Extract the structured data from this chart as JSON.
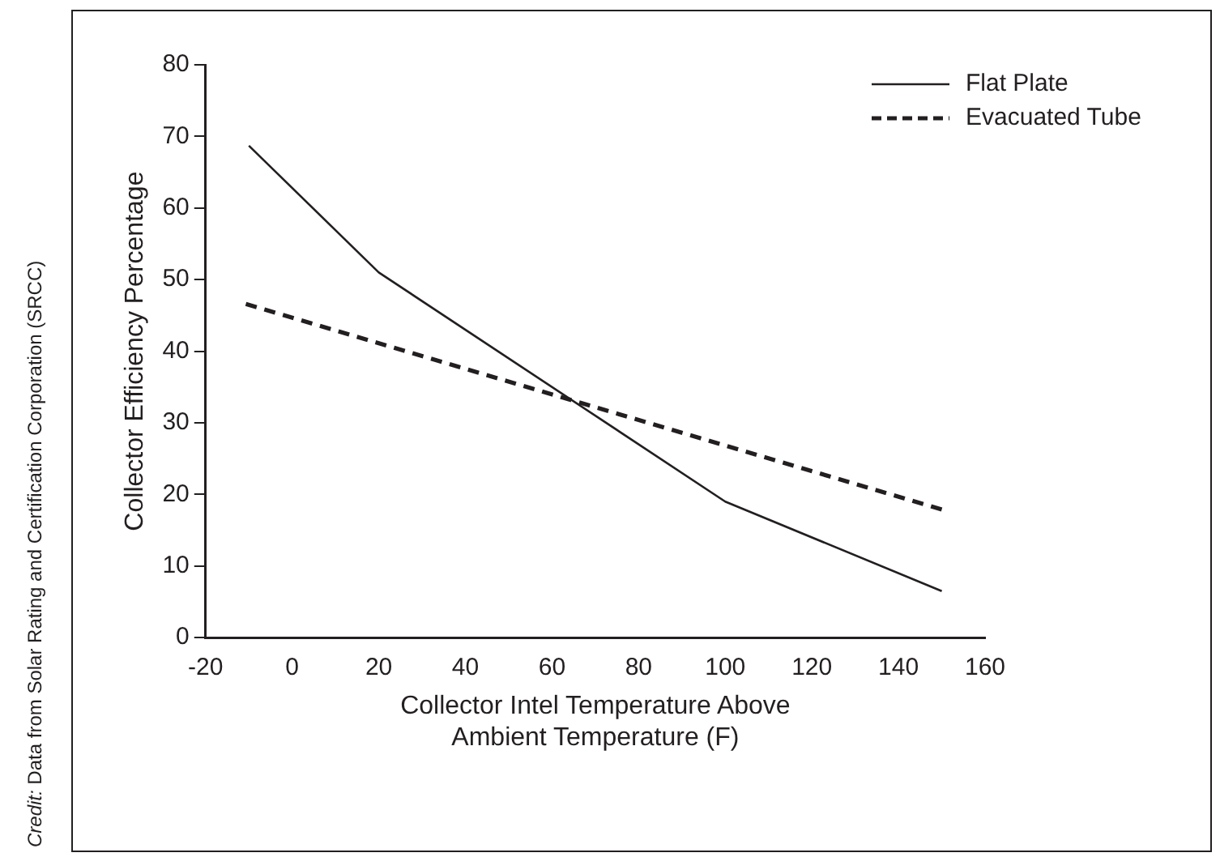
{
  "chart_data": {
    "type": "line",
    "xlabel": "Collector Intel Temperature Above\nAmbient Temperature (F)",
    "ylabel": "Collector Efficiency Percentage",
    "xlim": [
      -20,
      160
    ],
    "xticks": [
      -20,
      0,
      20,
      40,
      60,
      80,
      100,
      120,
      140,
      160
    ],
    "ylim": [
      0,
      80
    ],
    "yticks": [
      0,
      10,
      20,
      30,
      40,
      50,
      60,
      70,
      80
    ],
    "series": [
      {
        "name": "Flat Plate",
        "color": "#231f20",
        "x": [
          -10,
          20,
          100,
          150
        ],
        "values": [
          68.7,
          51,
          19,
          6.5
        ],
        "line_style": "solid"
      },
      {
        "name": "Evacuated Tube",
        "color": "#231f20",
        "x": [
          -10.7,
          150
        ],
        "values": [
          46.6,
          17.9
        ],
        "line_style": "dashed"
      }
    ],
    "legend": "top right",
    "grid": false,
    "marker": "none",
    "annotations": [
      "Credit: Data from Solar Rating and Certification Corporation (SRCC)"
    ]
  }
}
